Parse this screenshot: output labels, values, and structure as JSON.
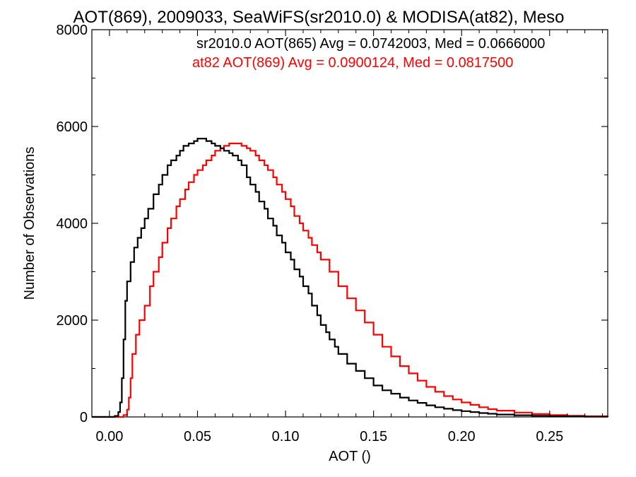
{
  "chart_data": {
    "type": "line",
    "title": "AOT(869), 2009033, SeaWiFS(sr2010.0) & MODISA(at82), Meso",
    "xlabel": "AOT ()",
    "ylabel": "Number of Observations",
    "xlim": [
      -0.01,
      0.283
    ],
    "ylim": [
      0,
      8000
    ],
    "x_ticks": [
      0.0,
      0.05,
      0.1,
      0.15,
      0.2,
      0.25
    ],
    "x_tick_labels": [
      "0.00",
      "0.05",
      "0.10",
      "0.15",
      "0.20",
      "0.25"
    ],
    "y_ticks": [
      0,
      2000,
      4000,
      6000,
      8000
    ],
    "y_tick_labels": [
      "0",
      "2000",
      "4000",
      "6000",
      "8000"
    ],
    "grid": false,
    "step": true,
    "series": [
      {
        "name": "sr2010.0 AOT(865)",
        "legend": "sr2010.0 AOT(865) Avg = 0.0742003, Med = 0.0666000",
        "color": "#000000",
        "x": [
          -0.01,
          0.0,
          0.003,
          0.005,
          0.006,
          0.007,
          0.008,
          0.009,
          0.01,
          0.012,
          0.014,
          0.016,
          0.018,
          0.02,
          0.022,
          0.025,
          0.028,
          0.03,
          0.033,
          0.035,
          0.038,
          0.04,
          0.042,
          0.045,
          0.048,
          0.05,
          0.052,
          0.055,
          0.058,
          0.06,
          0.063,
          0.065,
          0.068,
          0.07,
          0.073,
          0.075,
          0.078,
          0.08,
          0.083,
          0.085,
          0.088,
          0.09,
          0.093,
          0.095,
          0.098,
          0.1,
          0.103,
          0.105,
          0.108,
          0.11,
          0.113,
          0.115,
          0.118,
          0.12,
          0.123,
          0.125,
          0.128,
          0.13,
          0.135,
          0.14,
          0.145,
          0.15,
          0.155,
          0.16,
          0.165,
          0.17,
          0.175,
          0.18,
          0.185,
          0.19,
          0.195,
          0.2,
          0.205,
          0.21,
          0.215,
          0.22,
          0.23,
          0.24,
          0.25,
          0.26,
          0.27,
          0.283
        ],
        "y": [
          0,
          0,
          20,
          100,
          300,
          800,
          1600,
          2400,
          2800,
          3200,
          3500,
          3700,
          3900,
          4100,
          4300,
          4600,
          4800,
          5000,
          5200,
          5300,
          5400,
          5500,
          5600,
          5650,
          5700,
          5750,
          5750,
          5700,
          5650,
          5600,
          5550,
          5500,
          5450,
          5400,
          5300,
          5200,
          4950,
          4800,
          4650,
          4450,
          4300,
          4100,
          3950,
          3750,
          3600,
          3400,
          3250,
          3050,
          2900,
          2700,
          2550,
          2300,
          2100,
          1900,
          1750,
          1600,
          1450,
          1300,
          1100,
          950,
          800,
          650,
          550,
          480,
          400,
          340,
          290,
          240,
          200,
          170,
          140,
          120,
          100,
          80,
          65,
          50,
          35,
          25,
          15,
          10,
          5,
          0
        ]
      },
      {
        "name": "at82 AOT(869)",
        "legend": "at82 AOT(869) Avg = 0.0900124, Med = 0.0817500",
        "color": "#ff0000",
        "x": [
          -0.01,
          0.0,
          0.005,
          0.008,
          0.01,
          0.011,
          0.012,
          0.013,
          0.015,
          0.017,
          0.02,
          0.023,
          0.025,
          0.028,
          0.03,
          0.033,
          0.035,
          0.038,
          0.04,
          0.043,
          0.045,
          0.048,
          0.05,
          0.053,
          0.055,
          0.058,
          0.06,
          0.063,
          0.065,
          0.068,
          0.07,
          0.073,
          0.075,
          0.078,
          0.08,
          0.083,
          0.085,
          0.088,
          0.09,
          0.093,
          0.095,
          0.098,
          0.1,
          0.103,
          0.105,
          0.108,
          0.11,
          0.113,
          0.115,
          0.118,
          0.12,
          0.125,
          0.13,
          0.135,
          0.14,
          0.145,
          0.15,
          0.155,
          0.16,
          0.165,
          0.17,
          0.175,
          0.18,
          0.185,
          0.19,
          0.195,
          0.2,
          0.205,
          0.21,
          0.215,
          0.22,
          0.23,
          0.24,
          0.25,
          0.26,
          0.27,
          0.283
        ],
        "y": [
          0,
          0,
          0,
          40,
          150,
          400,
          800,
          1300,
          1700,
          2000,
          2300,
          2700,
          3000,
          3300,
          3600,
          3900,
          4100,
          4350,
          4500,
          4700,
          4850,
          5000,
          5100,
          5200,
          5300,
          5400,
          5500,
          5550,
          5600,
          5650,
          5650,
          5650,
          5600,
          5550,
          5500,
          5400,
          5300,
          5200,
          5100,
          4950,
          4800,
          4650,
          4500,
          4350,
          4150,
          4000,
          3850,
          3700,
          3550,
          3400,
          3250,
          3000,
          2700,
          2450,
          2200,
          1950,
          1700,
          1450,
          1250,
          1050,
          900,
          750,
          620,
          520,
          430,
          360,
          300,
          250,
          200,
          160,
          130,
          90,
          60,
          40,
          25,
          15,
          5
        ]
      }
    ]
  }
}
